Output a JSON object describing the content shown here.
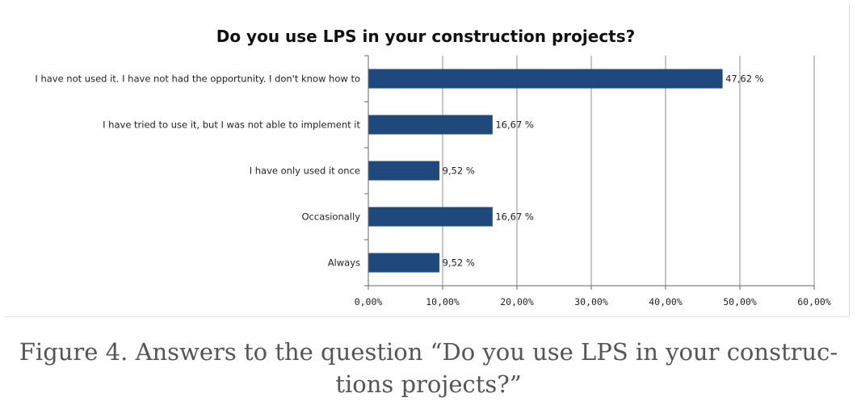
{
  "chart_data": {
    "type": "bar",
    "orientation": "horizontal",
    "title": "Do you use LPS in your construction projects?",
    "categories": [
      "I have not used it. I have not had the opportunity. I don't know how to",
      "I have tried to use it, but I was not able to implement it",
      "I have only used it once",
      "Occasionally",
      "Always"
    ],
    "values": [
      47.62,
      16.67,
      9.52,
      16.67,
      9.52
    ],
    "data_labels": [
      "47,62 %",
      "16,67 %",
      "9,52 %",
      "16,67 %",
      "9,52 %"
    ],
    "xlim": [
      0,
      60
    ],
    "x_ticks": [
      0,
      10,
      20,
      30,
      40,
      50,
      60
    ],
    "x_tick_labels": [
      "0,00%",
      "10,00%",
      "20,00%",
      "30,00%",
      "40,00%",
      "50,00%",
      "60,00%"
    ],
    "grid": "vertical",
    "legend": "none",
    "bar_color": "#1f497d",
    "grid_color": "#8c8c8c"
  },
  "caption": {
    "line1": "Figure 4. Answers to the question “Do you use LPS in your construc-",
    "line2": "tions projects?”"
  }
}
